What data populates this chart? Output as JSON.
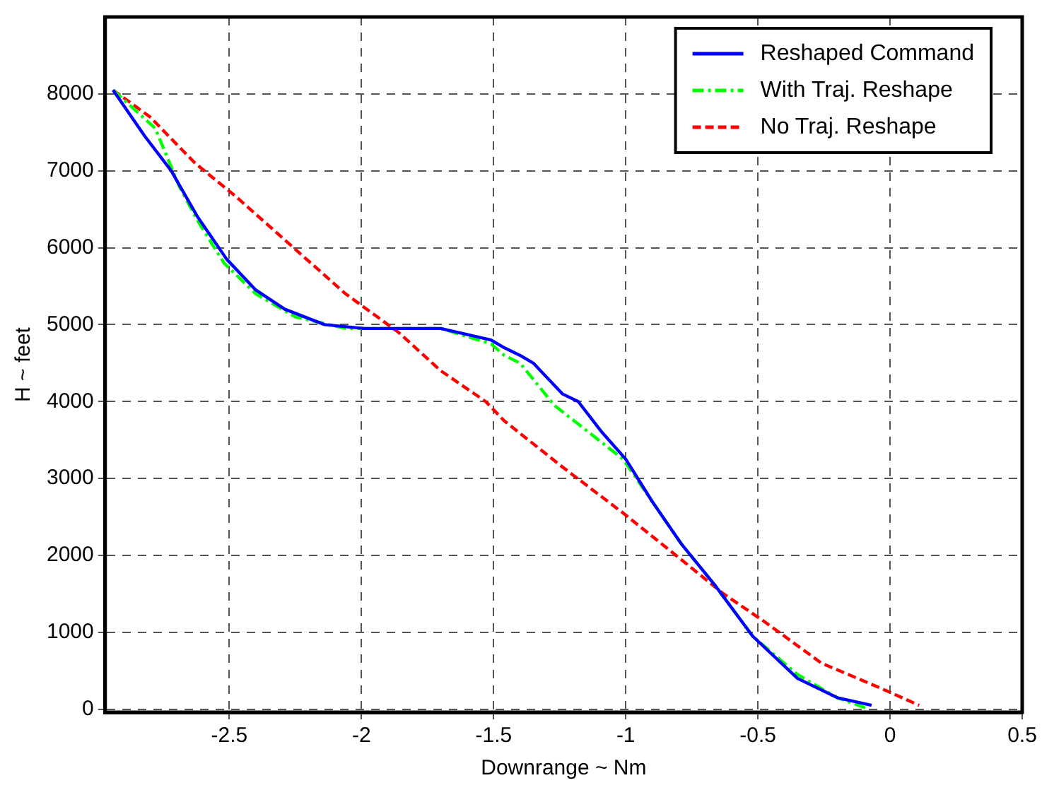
{
  "chart_data": {
    "type": "line",
    "xlabel": "Downrange ~ Nm",
    "ylabel": "H ~ feet",
    "xlim": [
      -2.97,
      0.5
    ],
    "xticks": [
      -2.5,
      -2,
      -1.5,
      -1,
      -0.5,
      0,
      0.5
    ],
    "ylim": [
      -40,
      9000
    ],
    "yticks": [
      0,
      1000,
      2000,
      3000,
      4000,
      5000,
      6000,
      7000,
      8000
    ],
    "grid": true,
    "legend": "top right",
    "marker": "none",
    "series": [
      {
        "name": "Reshaped Command",
        "color": "#0000ff",
        "line_style": "solid",
        "x": [
          -2.94,
          -2.82,
          -2.72,
          -2.62,
          -2.51,
          -2.4,
          -2.29,
          -2.14,
          -1.99,
          -1.7,
          -1.51,
          -1.46,
          -1.4,
          -1.35,
          -1.24,
          -1.18,
          -1.09,
          -1.0,
          -0.9,
          -0.79,
          -0.66,
          -0.52,
          -0.35,
          -0.2,
          -0.07
        ],
        "values": [
          8050,
          7450,
          7000,
          6400,
          5850,
          5450,
          5200,
          5000,
          4950,
          4950,
          4800,
          4700,
          4600,
          4500,
          4100,
          4000,
          3600,
          3250,
          2700,
          2150,
          1600,
          950,
          400,
          150,
          50
        ]
      },
      {
        "name": "With Traj. Reshape",
        "color": "#00ff00",
        "line_style": "dashdot",
        "x": [
          -2.94,
          -2.78,
          -2.69,
          -2.62,
          -2.52,
          -2.4,
          -2.25,
          -2.06,
          -1.7,
          -1.51,
          -1.46,
          -1.4,
          -1.27,
          -1.01,
          -0.9,
          -0.79,
          -0.66,
          -0.52,
          -0.35,
          -0.2,
          -0.08
        ],
        "values": [
          8050,
          7550,
          6800,
          6350,
          5800,
          5400,
          5100,
          4950,
          4950,
          4750,
          4600,
          4500,
          3950,
          3250,
          2700,
          2150,
          1600,
          950,
          450,
          150,
          0
        ]
      },
      {
        "name": "No Traj. Reshape",
        "color": "#ff0000",
        "line_style": "dashed",
        "x": [
          -2.94,
          -2.8,
          -2.63,
          -2.47,
          -2.29,
          -2.06,
          -1.86,
          -1.7,
          -1.53,
          -1.46,
          -1.24,
          -1.01,
          -0.81,
          -0.63,
          -0.48,
          -0.26,
          -0.02,
          0.11
        ],
        "values": [
          8050,
          7700,
          7100,
          6650,
          6100,
          5400,
          4900,
          4400,
          4000,
          3750,
          3150,
          2550,
          2000,
          1500,
          1150,
          600,
          250,
          50
        ]
      }
    ]
  }
}
